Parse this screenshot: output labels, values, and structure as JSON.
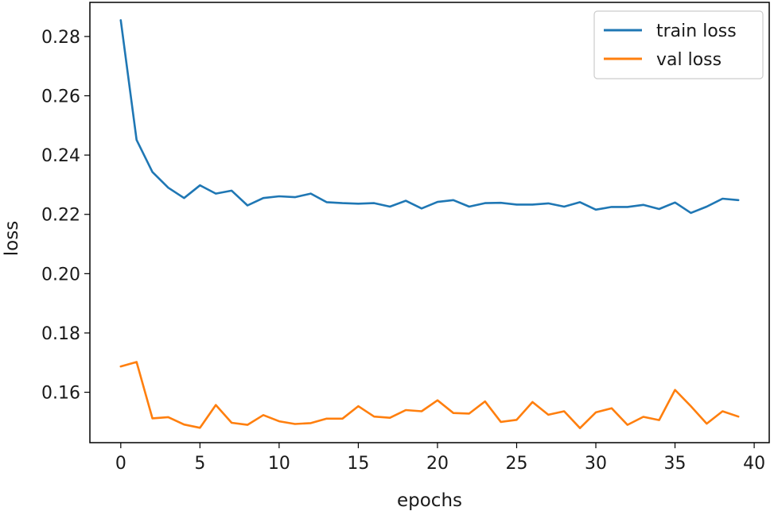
{
  "chart_data": {
    "type": "line",
    "title": "",
    "xlabel": "epochs",
    "ylabel": "loss",
    "xlim": [
      -1.95,
      40.95
    ],
    "ylim": [
      0.143,
      0.2915
    ],
    "xticks": [
      0,
      5,
      10,
      15,
      20,
      25,
      30,
      35,
      40
    ],
    "yticks": [
      0.16,
      0.18,
      0.2,
      0.22,
      0.24,
      0.26,
      0.28
    ],
    "ytick_labels": [
      "0.16",
      "0.18",
      "0.20",
      "0.22",
      "0.24",
      "0.26",
      "0.28"
    ],
    "grid": false,
    "legend_position": "top-right",
    "x": [
      0,
      1,
      2,
      3,
      4,
      5,
      6,
      7,
      8,
      9,
      10,
      11,
      12,
      13,
      14,
      15,
      16,
      17,
      18,
      19,
      20,
      21,
      22,
      23,
      24,
      25,
      26,
      27,
      28,
      29,
      30,
      31,
      32,
      33,
      34,
      35,
      36,
      37,
      38,
      39
    ],
    "series": [
      {
        "name": "train loss",
        "color": "#1f77b4",
        "values": [
          0.2855,
          0.2451,
          0.2343,
          0.229,
          0.2255,
          0.2298,
          0.227,
          0.228,
          0.223,
          0.2255,
          0.2261,
          0.2258,
          0.227,
          0.2241,
          0.2238,
          0.2236,
          0.2238,
          0.2226,
          0.2246,
          0.222,
          0.2242,
          0.2248,
          0.2226,
          0.2238,
          0.2239,
          0.2233,
          0.2233,
          0.2237,
          0.2226,
          0.2241,
          0.2216,
          0.2225,
          0.2225,
          0.2232,
          0.2218,
          0.224,
          0.2205,
          0.2226,
          0.2253,
          0.2248
        ]
      },
      {
        "name": "val loss",
        "color": "#ff7f0e",
        "values": [
          0.1687,
          0.1702,
          0.1512,
          0.1516,
          0.1491,
          0.148,
          0.1557,
          0.1497,
          0.149,
          0.1523,
          0.1502,
          0.1493,
          0.1496,
          0.1511,
          0.1511,
          0.1553,
          0.1518,
          0.1514,
          0.154,
          0.1536,
          0.1573,
          0.153,
          0.1528,
          0.1569,
          0.15,
          0.1507,
          0.1567,
          0.1524,
          0.1536,
          0.1479,
          0.1532,
          0.1546,
          0.149,
          0.1517,
          0.1506,
          0.1608,
          0.1553,
          0.1494,
          0.1536,
          0.1518
        ]
      }
    ]
  }
}
